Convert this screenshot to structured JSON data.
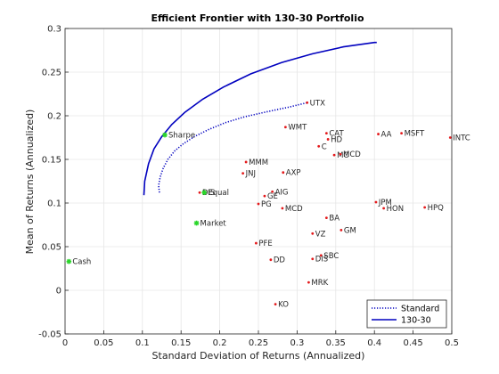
{
  "chart_data": {
    "type": "scatter",
    "title": "Efficient Frontier with 130-30 Portfolio",
    "xlabel": "Standard Deviation of Returns (Annualized)",
    "ylabel": "Mean of Returns (Annualized)",
    "xlim": [
      0,
      0.5
    ],
    "ylim": [
      -0.05,
      0.3
    ],
    "xticks": [
      "0",
      "0.05",
      "0.1",
      "0.15",
      "0.2",
      "0.25",
      "0.3",
      "0.35",
      "0.4",
      "0.45",
      "0.5"
    ],
    "yticks": [
      "-0.05",
      "0",
      "0.05",
      "0.1",
      "0.15",
      "0.2",
      "0.25",
      "0.3"
    ],
    "grid": true,
    "legend_position": "bottom-right",
    "colors": {
      "assets": "#e41a1c",
      "special": "#2bd62b",
      "frontier": "#0000bf"
    },
    "assets": [
      {
        "label": "UTX",
        "x": 0.313,
        "y": 0.215
      },
      {
        "label": "WMT",
        "x": 0.285,
        "y": 0.187
      },
      {
        "label": "CAT",
        "x": 0.338,
        "y": 0.18
      },
      {
        "label": "HD",
        "x": 0.34,
        "y": 0.173
      },
      {
        "label": "C",
        "x": 0.328,
        "y": 0.165
      },
      {
        "label": "MO",
        "x": 0.348,
        "y": 0.155
      },
      {
        "label": "MCD",
        "x": 0.356,
        "y": 0.156
      },
      {
        "label": "AA",
        "x": 0.405,
        "y": 0.179
      },
      {
        "label": "MSFT",
        "x": 0.435,
        "y": 0.18
      },
      {
        "label": "INTC",
        "x": 0.498,
        "y": 0.175
      },
      {
        "label": "MMM",
        "x": 0.234,
        "y": 0.147
      },
      {
        "label": "JNJ",
        "x": 0.23,
        "y": 0.134
      },
      {
        "label": "AXP",
        "x": 0.282,
        "y": 0.135
      },
      {
        "label": "DIS",
        "x": 0.174,
        "y": 0.112
      },
      {
        "label": "AIG",
        "x": 0.268,
        "y": 0.113
      },
      {
        "label": "GE",
        "x": 0.258,
        "y": 0.108
      },
      {
        "label": "PG",
        "x": 0.25,
        "y": 0.099
      },
      {
        "label": "MCD",
        "x": 0.281,
        "y": 0.094
      },
      {
        "label": "JPM",
        "x": 0.402,
        "y": 0.101
      },
      {
        "label": "HON",
        "x": 0.412,
        "y": 0.094
      },
      {
        "label": "HPQ",
        "x": 0.465,
        "y": 0.095
      },
      {
        "label": "BA",
        "x": 0.338,
        "y": 0.083
      },
      {
        "label": "GM",
        "x": 0.357,
        "y": 0.069
      },
      {
        "label": "VZ",
        "x": 0.32,
        "y": 0.065
      },
      {
        "label": "PFE",
        "x": 0.247,
        "y": 0.054
      },
      {
        "label": "SBC",
        "x": 0.331,
        "y": 0.04
      },
      {
        "label": "DIS",
        "x": 0.32,
        "y": 0.036
      },
      {
        "label": "DD",
        "x": 0.266,
        "y": 0.035
      },
      {
        "label": "MRK",
        "x": 0.315,
        "y": 0.009
      },
      {
        "label": "KO",
        "x": 0.272,
        "y": -0.016
      }
    ],
    "special_points": [
      {
        "label": "Sharpe",
        "x": 0.129,
        "y": 0.178
      },
      {
        "label": "Equal",
        "x": 0.18,
        "y": 0.112
      },
      {
        "label": "Market",
        "x": 0.17,
        "y": 0.077
      },
      {
        "label": "Cash",
        "x": 0.005,
        "y": 0.033
      }
    ],
    "series": [
      {
        "name": "Standard",
        "style": "dotted",
        "x": [
          0.122,
          0.121,
          0.123,
          0.127,
          0.133,
          0.142,
          0.153,
          0.167,
          0.185,
          0.207,
          0.233,
          0.263,
          0.29,
          0.313
        ],
        "y": [
          0.112,
          0.12,
          0.13,
          0.14,
          0.15,
          0.16,
          0.168,
          0.176,
          0.184,
          0.192,
          0.199,
          0.205,
          0.21,
          0.215
        ]
      },
      {
        "name": "130-30",
        "style": "solid",
        "x": [
          0.102,
          0.103,
          0.108,
          0.115,
          0.125,
          0.138,
          0.155,
          0.178,
          0.205,
          0.24,
          0.28,
          0.32,
          0.36,
          0.4,
          0.403
        ],
        "y": [
          0.109,
          0.125,
          0.145,
          0.162,
          0.176,
          0.19,
          0.204,
          0.219,
          0.233,
          0.248,
          0.261,
          0.271,
          0.279,
          0.284,
          0.284
        ]
      }
    ]
  }
}
